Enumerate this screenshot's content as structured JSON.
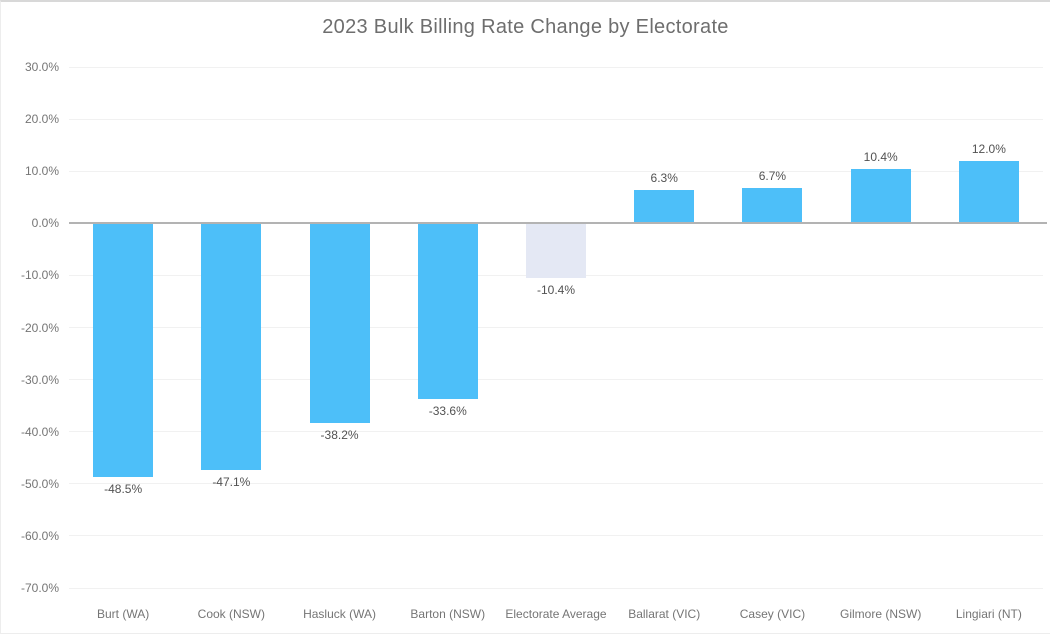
{
  "title": "2023 Bulk Billing Rate Change by Electorate",
  "colors": {
    "bar_default": "#4dbff9",
    "bar_highlight": "#e4e8f4",
    "zero_line": "#b3b3b3",
    "gridline": "#f1f1f1",
    "axis_text": "#757575",
    "data_label_text": "#525252",
    "title_text": "#6e6e6e"
  },
  "chart_data": {
    "type": "bar",
    "title": "2023 Bulk Billing Rate Change by Electorate",
    "categories": [
      "Burt (WA)",
      "Cook (NSW)",
      "Hasluck (WA)",
      "Barton (NSW)",
      "Electorate Average",
      "Ballarat (VIC)",
      "Casey (VIC)",
      "Gilmore (NSW)",
      "Lingiari (NT)"
    ],
    "values": [
      -48.5,
      -47.1,
      -38.2,
      -33.6,
      -10.4,
      6.3,
      6.7,
      10.4,
      12.0
    ],
    "data_labels": [
      "-48.5%",
      "-47.1%",
      "-38.2%",
      "-33.6%",
      "-10.4%",
      "6.3%",
      "6.7%",
      "10.4%",
      "12.0%"
    ],
    "highlight_index": 4,
    "xlabel": "",
    "ylabel": "",
    "ylim": [
      -70,
      30
    ],
    "ytick_step": 10,
    "ytick_labels": [
      "30.0%",
      "20.0%",
      "10.0%",
      "0.0%",
      "-10.0%",
      "-20.0%",
      "-30.0%",
      "-40.0%",
      "-50.0%",
      "-60.0%",
      "-70.0%"
    ],
    "grid": true,
    "legend": "none"
  }
}
